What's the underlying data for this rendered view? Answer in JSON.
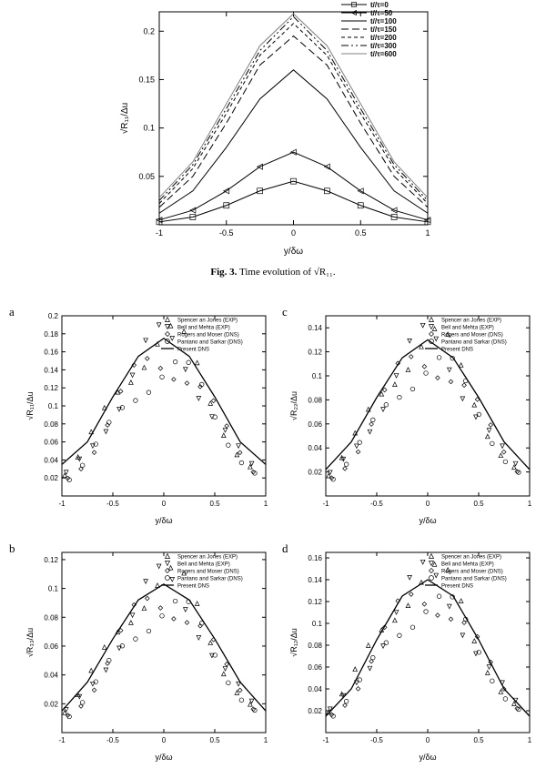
{
  "figure3": {
    "type": "line",
    "caption_prefix": "Fig. 3.",
    "caption_text": "Time evolution of √R₁₁.",
    "xlabel": "y/δω",
    "ylabel": "√R₁₁/Δu",
    "xlim": [
      -1,
      1
    ],
    "ylim": [
      0,
      0.22
    ],
    "xticks": [
      -1,
      -0.5,
      0,
      0.5,
      1
    ],
    "yticks": [
      0.05,
      0.1,
      0.15,
      0.2
    ],
    "axis_fontsize": 9,
    "tick_fontsize": 8,
    "legend_fontsize": 8,
    "background_color": "#ffffff",
    "axis_color": "#000000",
    "series": [
      {
        "label": "t//τ=0",
        "style": "line-square",
        "color": "#000000",
        "peak": 0.045,
        "data": [
          [
            -1,
            0.003
          ],
          [
            -0.75,
            0.008
          ],
          [
            -0.5,
            0.02
          ],
          [
            -0.25,
            0.035
          ],
          [
            0,
            0.045
          ],
          [
            0.25,
            0.035
          ],
          [
            0.5,
            0.02
          ],
          [
            0.75,
            0.008
          ],
          [
            1,
            0.003
          ]
        ]
      },
      {
        "label": "t//τ=50",
        "style": "line-triangle",
        "color": "#000000",
        "peak": 0.075,
        "data": [
          [
            -1,
            0.005
          ],
          [
            -0.75,
            0.015
          ],
          [
            -0.5,
            0.035
          ],
          [
            -0.25,
            0.06
          ],
          [
            0,
            0.075
          ],
          [
            0.25,
            0.06
          ],
          [
            0.5,
            0.035
          ],
          [
            0.75,
            0.015
          ],
          [
            1,
            0.005
          ]
        ]
      },
      {
        "label": "t//τ=100",
        "style": "solid",
        "color": "#000000",
        "peak": 0.16,
        "data": [
          [
            -1,
            0.012
          ],
          [
            -0.75,
            0.035
          ],
          [
            -0.5,
            0.08
          ],
          [
            -0.25,
            0.13
          ],
          [
            0,
            0.16
          ],
          [
            0.25,
            0.13
          ],
          [
            0.5,
            0.08
          ],
          [
            0.75,
            0.035
          ],
          [
            1,
            0.012
          ]
        ]
      },
      {
        "label": "t//τ=150",
        "style": "long-dash",
        "color": "#000000",
        "peak": 0.195,
        "data": [
          [
            -1,
            0.018
          ],
          [
            -0.75,
            0.05
          ],
          [
            -0.5,
            0.105
          ],
          [
            -0.25,
            0.165
          ],
          [
            0,
            0.195
          ],
          [
            0.25,
            0.165
          ],
          [
            0.5,
            0.105
          ],
          [
            0.75,
            0.05
          ],
          [
            1,
            0.018
          ]
        ]
      },
      {
        "label": "t//τ=200",
        "style": "short-dash",
        "color": "#000000",
        "peak": 0.208,
        "data": [
          [
            -1,
            0.022
          ],
          [
            -0.75,
            0.058
          ],
          [
            -0.5,
            0.115
          ],
          [
            -0.25,
            0.175
          ],
          [
            0,
            0.208
          ],
          [
            0.25,
            0.175
          ],
          [
            0.5,
            0.115
          ],
          [
            0.75,
            0.058
          ],
          [
            1,
            0.022
          ]
        ]
      },
      {
        "label": "t//τ=300",
        "style": "dash-dot-dot",
        "color": "#000000",
        "peak": 0.215,
        "data": [
          [
            -1,
            0.025
          ],
          [
            -0.75,
            0.062
          ],
          [
            -0.5,
            0.12
          ],
          [
            -0.25,
            0.18
          ],
          [
            0,
            0.215
          ],
          [
            0.25,
            0.18
          ],
          [
            0.5,
            0.12
          ],
          [
            0.75,
            0.062
          ],
          [
            1,
            0.025
          ]
        ]
      },
      {
        "label": "t//τ=600",
        "style": "solid",
        "color": "#808080",
        "peak": 0.218,
        "data": [
          [
            -1,
            0.028
          ],
          [
            -0.75,
            0.065
          ],
          [
            -0.5,
            0.125
          ],
          [
            -0.25,
            0.185
          ],
          [
            0,
            0.218
          ],
          [
            0.25,
            0.185
          ],
          [
            0.5,
            0.125
          ],
          [
            0.75,
            0.065
          ],
          [
            1,
            0.028
          ]
        ]
      }
    ]
  },
  "figure4": {
    "legend": [
      {
        "label": "Spencer an Jones (EXP)",
        "marker": "triangle-up"
      },
      {
        "label": "Bell and Mehta (EXP)",
        "marker": "triangle-down"
      },
      {
        "label": "Rogers and Moser (DNS)",
        "marker": "diamond"
      },
      {
        "label": "Pantano and  Sarkar (DNS)",
        "marker": "circle"
      },
      {
        "label": "Present DNS",
        "marker": "line"
      }
    ],
    "legend_fontsize": 6,
    "panels": {
      "a": {
        "label": "a",
        "xlabel": "y/δω",
        "ylabel": "√R₁₁/Δu",
        "xlim": [
          -1,
          1
        ],
        "ylim": [
          0,
          0.2
        ],
        "xticks": [
          -1,
          -0.5,
          0,
          0.5,
          1
        ],
        "yticks": [
          0.02,
          0.04,
          0.06,
          0.08,
          0.1,
          0.12,
          0.14,
          0.16,
          0.18,
          0.2
        ],
        "line_data": [
          [
            -1,
            0.035
          ],
          [
            -0.75,
            0.06
          ],
          [
            -0.5,
            0.11
          ],
          [
            -0.25,
            0.155
          ],
          [
            0,
            0.175
          ],
          [
            0.25,
            0.155
          ],
          [
            0.5,
            0.11
          ],
          [
            0.75,
            0.06
          ],
          [
            1,
            0.035
          ]
        ],
        "scatter_peak_range": [
          0.155,
          0.19
        ]
      },
      "b": {
        "label": "b",
        "xlabel": "y/δω",
        "ylabel": "√R₃₃/Δu",
        "xlim": [
          -1,
          1
        ],
        "ylim": [
          0,
          0.125
        ],
        "xticks": [
          -1,
          -0.5,
          0,
          0.5,
          1
        ],
        "yticks": [
          0.02,
          0.04,
          0.06,
          0.08,
          0.1,
          0.12
        ],
        "line_data": [
          [
            -1,
            0.015
          ],
          [
            -0.75,
            0.035
          ],
          [
            -0.5,
            0.065
          ],
          [
            -0.25,
            0.092
          ],
          [
            0,
            0.103
          ],
          [
            0.25,
            0.092
          ],
          [
            0.5,
            0.065
          ],
          [
            0.75,
            0.035
          ],
          [
            1,
            0.015
          ]
        ],
        "scatter_peak_range": [
          0.095,
          0.115
        ]
      },
      "c": {
        "label": "c",
        "xlabel": "y/δω",
        "ylabel": "√R₂₂/Δu",
        "xlim": [
          -1,
          1
        ],
        "ylim": [
          0,
          0.15
        ],
        "xticks": [
          -1,
          -0.5,
          0,
          0.5,
          1
        ],
        "yticks": [
          0.02,
          0.04,
          0.06,
          0.08,
          0.1,
          0.12,
          0.14
        ],
        "line_data": [
          [
            -1,
            0.022
          ],
          [
            -0.75,
            0.045
          ],
          [
            -0.5,
            0.082
          ],
          [
            -0.25,
            0.115
          ],
          [
            0,
            0.13
          ],
          [
            0.25,
            0.115
          ],
          [
            0.5,
            0.082
          ],
          [
            0.75,
            0.045
          ],
          [
            1,
            0.022
          ]
        ],
        "scatter_peak_range": [
          0.12,
          0.14
        ]
      },
      "d": {
        "label": "d",
        "xlabel": "y/δω",
        "ylabel": "√R₁₂/Δu",
        "xlim": [
          -1,
          1
        ],
        "ylim": [
          0,
          0.165
        ],
        "xticks": [
          -1,
          -0.5,
          0,
          0.5,
          1
        ],
        "yticks": [
          0.02,
          0.04,
          0.06,
          0.08,
          0.1,
          0.12,
          0.14,
          0.16
        ],
        "line_data": [
          [
            -1,
            0.015
          ],
          [
            -0.75,
            0.04
          ],
          [
            -0.5,
            0.085
          ],
          [
            -0.25,
            0.125
          ],
          [
            0,
            0.14
          ],
          [
            0.25,
            0.125
          ],
          [
            0.5,
            0.085
          ],
          [
            0.75,
            0.04
          ],
          [
            1,
            0.015
          ]
        ],
        "scatter_peak_range": [
          0.13,
          0.155
        ]
      }
    }
  }
}
